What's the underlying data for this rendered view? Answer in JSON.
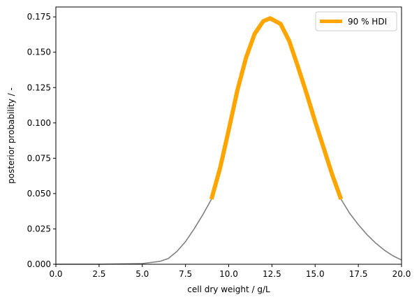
{
  "chart_data": {
    "type": "line",
    "title": "",
    "xlabel": "cell dry weight / g/L",
    "ylabel": "posterior probability / -",
    "xlim": [
      0,
      20
    ],
    "ylim": [
      0,
      0.182
    ],
    "xticks": [
      "0.0",
      "2.5",
      "5.0",
      "7.5",
      "10.0",
      "12.5",
      "15.0",
      "17.5",
      "20.0"
    ],
    "yticks": [
      "0.000",
      "0.025",
      "0.050",
      "0.075",
      "0.100",
      "0.125",
      "0.150",
      "0.175"
    ],
    "grid": false,
    "legend": {
      "position": "top-right",
      "entries": [
        "90 % HDI"
      ]
    },
    "series": [
      {
        "role": "full-posterior",
        "color": "#808080",
        "x": [
          0,
          2.5,
          5.0,
          6.0,
          6.5,
          7.0,
          7.5,
          8.0,
          8.5,
          9.0
        ],
        "y": [
          0.0,
          0.0,
          0.0005,
          0.002,
          0.004,
          0.009,
          0.016,
          0.025,
          0.035,
          0.046
        ]
      },
      {
        "role": "full-posterior",
        "color": "#808080",
        "x": [
          16.5,
          17.0,
          17.5,
          18.0,
          18.5,
          19.0,
          19.5,
          20.0
        ],
        "y": [
          0.046,
          0.036,
          0.028,
          0.021,
          0.015,
          0.01,
          0.006,
          0.003
        ]
      },
      {
        "name": "90 % HDI",
        "color": "#ffa500",
        "x": [
          9.0,
          9.5,
          10.0,
          10.5,
          11.0,
          11.5,
          12.0,
          12.4,
          13.0,
          13.5,
          14.0,
          14.5,
          15.0,
          15.5,
          16.0,
          16.5
        ],
        "y": [
          0.046,
          0.068,
          0.095,
          0.123,
          0.146,
          0.163,
          0.172,
          0.174,
          0.17,
          0.158,
          0.14,
          0.121,
          0.101,
          0.082,
          0.063,
          0.046
        ]
      }
    ]
  }
}
